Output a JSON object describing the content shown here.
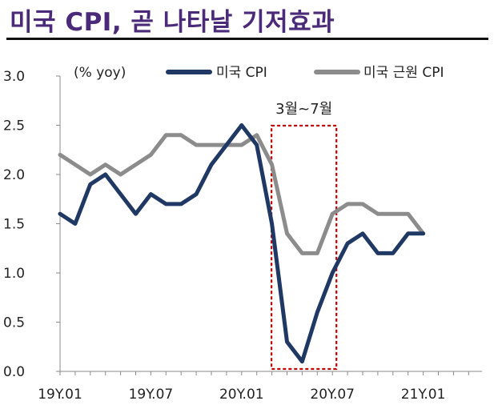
{
  "title": "미국 CPI, 곧 나타날 기저효과",
  "chart_data": {
    "type": "line",
    "unit_label": "(% yoy)",
    "ylim": [
      0.0,
      3.0
    ],
    "y_ticks": [
      "0.0",
      "0.5",
      "1.0",
      "1.5",
      "2.0",
      "2.5",
      "3.0"
    ],
    "x_tick_labels": [
      "19Y.01",
      "19Y.07",
      "20Y.01",
      "20Y.07",
      "21Y.01"
    ],
    "x": [
      "19Y.01",
      "19Y.02",
      "19Y.03",
      "19Y.04",
      "19Y.05",
      "19Y.06",
      "19Y.07",
      "19Y.08",
      "19Y.09",
      "19Y.10",
      "19Y.11",
      "19Y.12",
      "20Y.01",
      "20Y.02",
      "20Y.03",
      "20Y.04",
      "20Y.05",
      "20Y.06",
      "20Y.07",
      "20Y.08",
      "20Y.09",
      "20Y.10",
      "20Y.11",
      "20Y.12",
      "21Y.01"
    ],
    "series": [
      {
        "name": "미국 CPI",
        "color": "#1f3864",
        "values": [
          1.6,
          1.5,
          1.9,
          2.0,
          1.8,
          1.6,
          1.8,
          1.7,
          1.7,
          1.8,
          2.1,
          2.3,
          2.5,
          2.3,
          1.5,
          0.3,
          0.1,
          0.6,
          1.0,
          1.3,
          1.4,
          1.2,
          1.2,
          1.4,
          1.4
        ]
      },
      {
        "name": "미국 근원 CPI",
        "color": "#8c8c8c",
        "values": [
          2.2,
          2.1,
          2.0,
          2.1,
          2.0,
          2.1,
          2.2,
          2.4,
          2.4,
          2.3,
          2.3,
          2.3,
          2.3,
          2.4,
          2.1,
          1.4,
          1.2,
          1.2,
          1.6,
          1.7,
          1.7,
          1.6,
          1.6,
          1.6,
          1.4
        ]
      }
    ],
    "annotation": {
      "label": "3월~7월",
      "from": "20Y.03",
      "to": "20Y.07",
      "color": "#c00000"
    },
    "legend_position": "top"
  }
}
